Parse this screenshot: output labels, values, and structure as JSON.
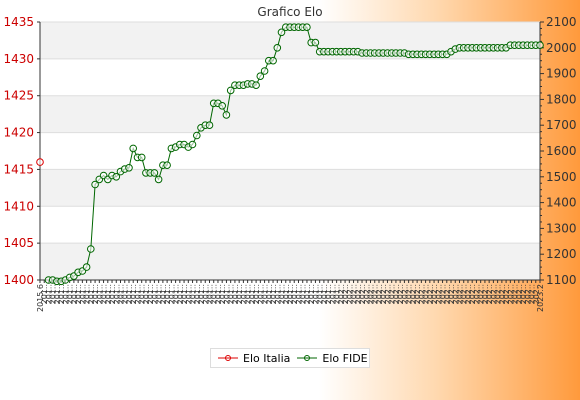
{
  "chart_data": {
    "type": "line",
    "title": "Grafico Elo",
    "colors": {
      "italia": "#dd0000",
      "fide": "#006600"
    },
    "y_left": {
      "range": [
        1400,
        1435
      ],
      "ticks": [
        1400,
        1405,
        1410,
        1415,
        1420,
        1425,
        1430,
        1435
      ]
    },
    "y_right": {
      "range": [
        1100,
        2100
      ],
      "ticks": [
        1100,
        1200,
        1300,
        1400,
        1500,
        1600,
        1700,
        1800,
        1900,
        2000,
        2100
      ]
    },
    "x_tick_labels": [
      "2015.6",
      "201..",
      "201..",
      "201..",
      "201..",
      "201..",
      "201..",
      "201..",
      "201..",
      "201..",
      "201..",
      "201..",
      "201..",
      "201..",
      "201..",
      "201..",
      "201..",
      "201..",
      "201..",
      "201..",
      "201..",
      "201..",
      "201..",
      "201..",
      "201..",
      "201..",
      "201..",
      "201..",
      "201..",
      "201..",
      "201..",
      "201..",
      "201..",
      "201..",
      "201..",
      "201..",
      "201..",
      "201..",
      "201..",
      "201..",
      "201..",
      "201..",
      "201..",
      "201..",
      "201..",
      "201..",
      "201..",
      "201..",
      "201..",
      "201..",
      "201..",
      "201..",
      "201..",
      "201..",
      "201..",
      "201..",
      "201..",
      "201..",
      "201..",
      "201..",
      "201..",
      "201..",
      "201..",
      "201..",
      "201..",
      "201..",
      "201..",
      "201..",
      "201..",
      "201..",
      "201..",
      "202..",
      "202..",
      "202..",
      "202..",
      "202..",
      "202..",
      "202..",
      "202..",
      "202..",
      "202..",
      "202..",
      "202..",
      "202..",
      "202..",
      "202..",
      "202..",
      "202..",
      "202..",
      "202..",
      "202..",
      "202..",
      "202..",
      "202..",
      "202..",
      "202..",
      "202..",
      "202..",
      "202..",
      "202..",
      "202..",
      "202..",
      "202..",
      "202..",
      "202..",
      "202..",
      "202..",
      "202..",
      "202..",
      "202..",
      "202..",
      "202..",
      "202..",
      "202..",
      "202..",
      "202..",
      "202..",
      "202..",
      "2023.2"
    ],
    "series": [
      {
        "name": "Elo Italia",
        "axis": "left",
        "start_index": 0,
        "values": [
          1416
        ]
      },
      {
        "name": "Elo FIDE",
        "axis": "right",
        "start_index": 2,
        "values": [
          1100,
          1100,
          1095,
          1095,
          1100,
          1110,
          1115,
          1130,
          1135,
          1150,
          1220,
          1470,
          1490,
          1505,
          1490,
          1505,
          1500,
          1520,
          1530,
          1535,
          1610,
          1575,
          1575,
          1515,
          1515,
          1515,
          1490,
          1545,
          1545,
          1610,
          1615,
          1625,
          1625,
          1615,
          1625,
          1660,
          1690,
          1700,
          1700,
          1785,
          1785,
          1775,
          1740,
          1835,
          1855,
          1855,
          1855,
          1860,
          1860,
          1855,
          1890,
          1910,
          1950,
          1950,
          2000,
          2060,
          2080,
          2080,
          2080,
          2080,
          2080,
          2080,
          2020,
          2020,
          1985,
          1985,
          1985,
          1985,
          1985,
          1985,
          1985,
          1985,
          1985,
          1985,
          1980,
          1980,
          1980,
          1980,
          1980,
          1980,
          1980,
          1980,
          1980,
          1980,
          1980,
          1975,
          1975,
          1975,
          1975,
          1975,
          1975,
          1975,
          1975,
          1975,
          1975,
          1985,
          1995,
          2000,
          2000,
          2000,
          2000,
          2000,
          2000,
          2000,
          2000,
          2000,
          2000,
          2000,
          2000,
          2010,
          2010,
          2010,
          2010,
          2010,
          2010,
          2010,
          2010
        ]
      }
    ]
  }
}
